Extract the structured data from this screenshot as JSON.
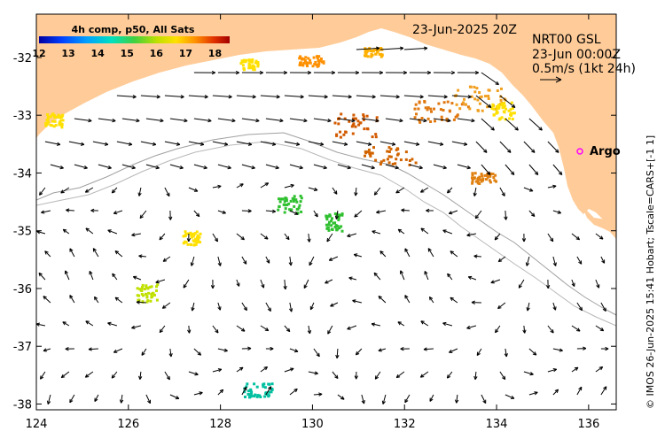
{
  "product_title": "4h comp, p50, All Sats",
  "timestamp": "23-Jun-2025 20Z",
  "current_source": "NRT00 GSL",
  "current_time": "23-Jun 00:00Z",
  "current_scale": "0.5m/s (1kt 24h)",
  "argo_label": "Argo",
  "credit": "© IMOS 26-Jun-2025 15:41 Hobart; Tscale=CARS+[-1 1]",
  "colorbar": {
    "ticks": [
      "12",
      "13",
      "14",
      "15",
      "16",
      "17",
      "18"
    ],
    "range": [
      12,
      18.5
    ]
  },
  "axes": {
    "lon_ticks": [
      "124",
      "126",
      "128",
      "130",
      "132",
      "134",
      "136"
    ],
    "lat_ticks": [
      "-32",
      "-33",
      "-34",
      "-35",
      "-36",
      "-37",
      "-38"
    ],
    "lon_range": [
      124,
      136.6
    ],
    "lat_range": [
      -31.25,
      -38.1
    ]
  },
  "colors": {
    "land": "#ffcc99",
    "ocean": "#ffffff",
    "arrow": "#000000",
    "isobath": "#a0a0a0",
    "argo": "#ff00ff"
  }
}
